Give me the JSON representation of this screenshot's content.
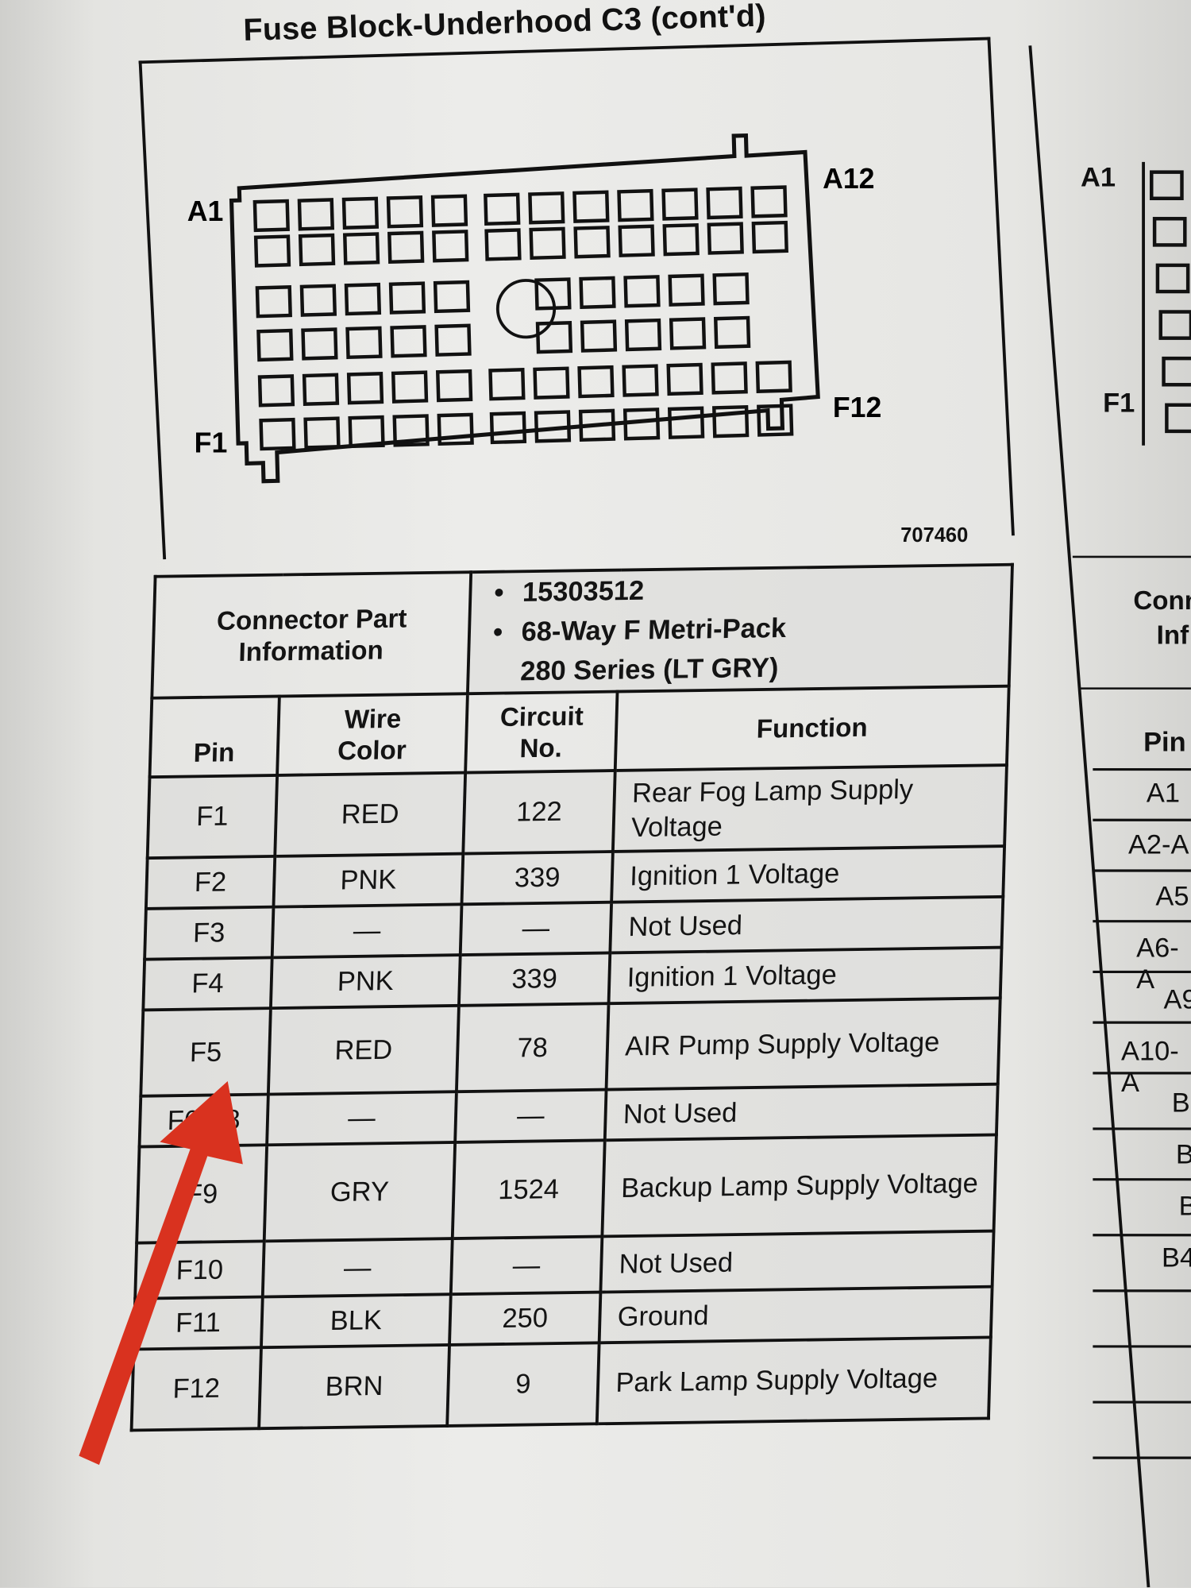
{
  "title": "Fuse Block-Underhood C3  (cont'd)",
  "diagram": {
    "pin_labels": {
      "top_left": "A1",
      "top_right": "A12",
      "bottom_left": "F1",
      "bottom_right": "F12"
    },
    "figure_number": "707460"
  },
  "connector_info": {
    "label": "Connector Part Information",
    "items": [
      "15303512",
      "68-Way F Metri-Pack",
      "280 Series (LT GRY)"
    ]
  },
  "table": {
    "headers": {
      "pin": "Pin",
      "wire_color": "Wire Color",
      "circuit_no": "Circuit No.",
      "function": "Function"
    },
    "rows": [
      {
        "pin": "F1",
        "wire_color": "RED",
        "circuit_no": "122",
        "function": "Rear Fog Lamp Supply Voltage"
      },
      {
        "pin": "F2",
        "wire_color": "PNK",
        "circuit_no": "339",
        "function": "Ignition 1 Voltage"
      },
      {
        "pin": "F3",
        "wire_color": "—",
        "circuit_no": "—",
        "function": "Not Used"
      },
      {
        "pin": "F4",
        "wire_color": "PNK",
        "circuit_no": "339",
        "function": "Ignition 1 Voltage"
      },
      {
        "pin": "F5",
        "wire_color": "RED",
        "circuit_no": "78",
        "function": "AIR Pump Supply Voltage"
      },
      {
        "pin": "F6-F8",
        "wire_color": "—",
        "circuit_no": "—",
        "function": "Not Used"
      },
      {
        "pin": "F9",
        "wire_color": "GRY",
        "circuit_no": "1524",
        "function": "Backup Lamp Supply Voltage"
      },
      {
        "pin": "F10",
        "wire_color": "—",
        "circuit_no": "—",
        "function": "Not Used"
      },
      {
        "pin": "F11",
        "wire_color": "BLK",
        "circuit_no": "250",
        "function": "Ground"
      },
      {
        "pin": "F12",
        "wire_color": "BRN",
        "circuit_no": "9",
        "function": "Park Lamp Supply Voltage"
      }
    ]
  },
  "next_page_partial": {
    "diagram_labels": [
      "A1",
      "F1"
    ],
    "connector_label": [
      "Conn",
      "Inf"
    ],
    "pin_header": "Pin",
    "pins": [
      "A1",
      "A2-A",
      "A5",
      "A6-A",
      "A9",
      "A10-A",
      "B",
      "B",
      "B",
      "B4"
    ]
  },
  "annotation": {
    "arrow_color": "#d9321f",
    "points_to": "F5"
  }
}
